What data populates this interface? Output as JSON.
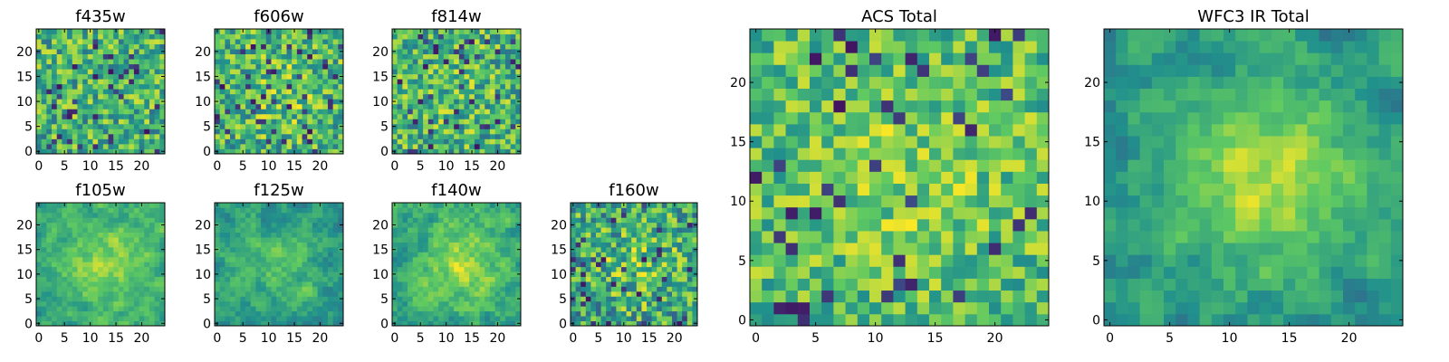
{
  "chart_data": [
    {
      "type": "heatmap",
      "title": "f435w",
      "xticks": [
        0,
        5,
        10,
        15,
        20
      ],
      "yticks": [
        0,
        5,
        10,
        15,
        20
      ],
      "xlim": [
        0,
        25
      ],
      "ylim": [
        0,
        25
      ],
      "grid": false,
      "seed": 11,
      "smooth": 0,
      "bias": [
        0.63,
        0.66,
        0.25
      ],
      "blob": 0.0
    },
    {
      "type": "heatmap",
      "title": "f606w",
      "xticks": [
        0,
        5,
        10,
        15,
        20
      ],
      "yticks": [
        0,
        5,
        10,
        15,
        20
      ],
      "xlim": [
        0,
        25
      ],
      "ylim": [
        0,
        25
      ],
      "grid": false,
      "seed": 23,
      "smooth": 0,
      "bias": [
        0.63,
        0.66,
        0.25
      ],
      "blob": 0.1
    },
    {
      "type": "heatmap",
      "title": "f814w",
      "xticks": [
        0,
        5,
        10,
        15,
        20
      ],
      "yticks": [
        0,
        5,
        10,
        15,
        20
      ],
      "xlim": [
        0,
        25
      ],
      "ylim": [
        0,
        25
      ],
      "grid": false,
      "seed": 37,
      "smooth": 0,
      "bias": [
        0.63,
        0.66,
        0.25
      ],
      "blob": 0.05
    },
    {
      "type": "heatmap",
      "title": "f105w",
      "xticks": [
        0,
        5,
        10,
        15,
        20
      ],
      "yticks": [
        0,
        5,
        10,
        15,
        20
      ],
      "xlim": [
        0,
        25
      ],
      "ylim": [
        0,
        25
      ],
      "grid": false,
      "seed": 41,
      "smooth": 1,
      "bias": [
        0.6,
        0.6,
        0.22
      ],
      "blob": 0.25
    },
    {
      "type": "heatmap",
      "title": "f125w",
      "xticks": [
        0,
        5,
        10,
        15,
        20
      ],
      "yticks": [
        0,
        5,
        10,
        15,
        20
      ],
      "xlim": [
        0,
        25
      ],
      "ylim": [
        0,
        25
      ],
      "grid": false,
      "seed": 53,
      "smooth": 1,
      "bias": [
        0.55,
        0.58,
        0.22
      ],
      "blob": 0.15
    },
    {
      "type": "heatmap",
      "title": "f140w",
      "xticks": [
        0,
        5,
        10,
        15,
        20
      ],
      "yticks": [
        0,
        5,
        10,
        15,
        20
      ],
      "xlim": [
        0,
        25
      ],
      "ylim": [
        0,
        25
      ],
      "grid": false,
      "seed": 67,
      "smooth": 1,
      "bias": [
        0.6,
        0.62,
        0.24
      ],
      "blob": 0.25
    },
    {
      "type": "heatmap",
      "title": "f160w",
      "xticks": [
        0,
        5,
        10,
        15,
        20
      ],
      "yticks": [
        0,
        5,
        10,
        15,
        20
      ],
      "xlim": [
        0,
        25
      ],
      "ylim": [
        0,
        25
      ],
      "grid": false,
      "seed": 79,
      "smooth": 0,
      "bias": [
        0.58,
        0.62,
        0.27
      ],
      "blob": 0.15
    },
    {
      "type": "heatmap",
      "title": "ACS Total",
      "xticks": [
        0,
        5,
        10,
        15,
        20
      ],
      "yticks": [
        0,
        5,
        10,
        15,
        20
      ],
      "xlim": [
        0,
        25
      ],
      "ylim": [
        0,
        25
      ],
      "grid": false,
      "seed": 97,
      "smooth": 0,
      "bias": [
        0.68,
        0.7,
        0.2
      ],
      "blob": 0.1
    },
    {
      "type": "heatmap",
      "title": "WFC3 IR Total",
      "xticks": [
        0,
        5,
        10,
        15,
        20
      ],
      "yticks": [
        0,
        5,
        10,
        15,
        20
      ],
      "xlim": [
        0,
        25
      ],
      "ylim": [
        0,
        25
      ],
      "grid": false,
      "seed": 113,
      "smooth": 1,
      "bias": [
        0.52,
        0.56,
        0.22
      ],
      "blob": 0.35
    }
  ],
  "colormap": [
    "#440154",
    "#3b528b",
    "#21918c",
    "#5ec962",
    "#fde725"
  ]
}
